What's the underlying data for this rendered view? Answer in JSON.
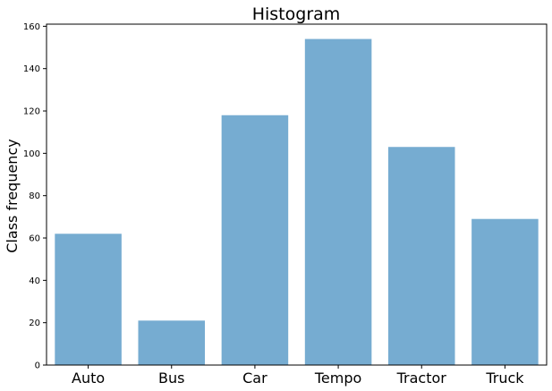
{
  "chart_data": {
    "type": "bar",
    "title": "Histogram",
    "xlabel": "",
    "ylabel": "Class frequency",
    "categories": [
      "Auto",
      "Bus",
      "Car",
      "Tempo",
      "Tractor",
      "Truck"
    ],
    "values": [
      62,
      21,
      118,
      154,
      103,
      69
    ],
    "ylim": [
      0,
      161
    ],
    "yticks": [
      0,
      20,
      40,
      60,
      80,
      100,
      120,
      140,
      160
    ],
    "bar_color": "#76acd1",
    "grid": false,
    "legend": "none"
  }
}
